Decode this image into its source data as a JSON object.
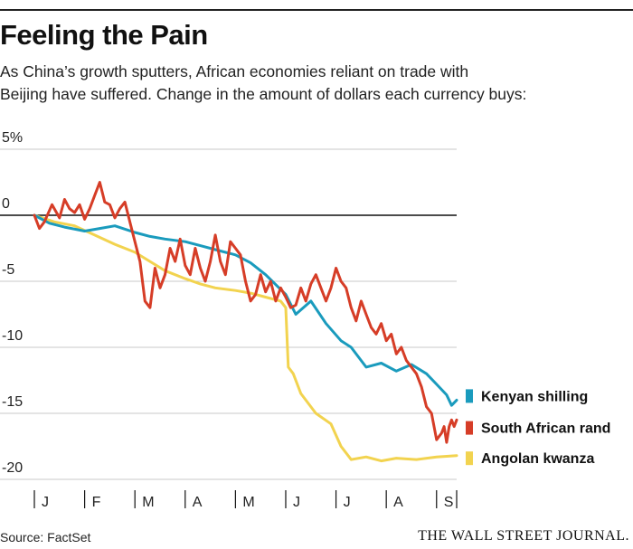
{
  "header": {
    "title": "Feeling the Pain",
    "subtitle_line1": "As China’s growth sputters, African economies reliant on trade with",
    "subtitle_line2": "Beijing have suffered. Change in the amount of dollars each currency buys:"
  },
  "footer": {
    "source": "Source: FactSet",
    "brand": "THE WALL STREET JOURNAL."
  },
  "chart_data": {
    "type": "line",
    "title": "Feeling the Pain",
    "xlabel": "",
    "ylabel": "",
    "ylim": [
      -20,
      5
    ],
    "x_range": [
      0,
      8.4
    ],
    "y_ticks": [
      {
        "value": 5,
        "label": "5%"
      },
      {
        "value": 0,
        "label": "0"
      },
      {
        "value": -5,
        "label": "-5"
      },
      {
        "value": -10,
        "label": "-10"
      },
      {
        "value": -15,
        "label": "-15"
      },
      {
        "value": -20,
        "label": "-20"
      }
    ],
    "x_ticks": [
      "J",
      "F",
      "M",
      "A",
      "M",
      "J",
      "J",
      "A",
      "S"
    ],
    "grid": true,
    "series": [
      {
        "name": "Kenyan shilling",
        "color": "#1a9bbd",
        "x": [
          0,
          0.3,
          0.6,
          1.0,
          1.3,
          1.6,
          2.0,
          2.3,
          2.6,
          3.0,
          3.3,
          3.6,
          4.0,
          4.3,
          4.6,
          5.0,
          5.2,
          5.5,
          5.8,
          6.1,
          6.3,
          6.6,
          6.9,
          7.2,
          7.5,
          7.8,
          8.0,
          8.2,
          8.3,
          8.4
        ],
        "values": [
          0,
          -0.6,
          -0.9,
          -1.2,
          -1.0,
          -0.8,
          -1.3,
          -1.6,
          -1.8,
          -2.0,
          -2.3,
          -2.6,
          -3.0,
          -3.6,
          -4.5,
          -6.0,
          -7.5,
          -6.5,
          -8.2,
          -9.5,
          -10.0,
          -11.5,
          -11.2,
          -11.8,
          -11.3,
          -12.0,
          -12.8,
          -13.6,
          -14.4,
          -14.0
        ]
      },
      {
        "name": "South African rand",
        "color": "#d63d27",
        "x": [
          0,
          0.1,
          0.2,
          0.35,
          0.5,
          0.6,
          0.7,
          0.8,
          0.9,
          1.0,
          1.1,
          1.2,
          1.3,
          1.4,
          1.5,
          1.6,
          1.7,
          1.8,
          1.9,
          2.0,
          2.1,
          2.2,
          2.3,
          2.4,
          2.5,
          2.6,
          2.7,
          2.8,
          2.9,
          3.0,
          3.1,
          3.2,
          3.3,
          3.4,
          3.5,
          3.6,
          3.7,
          3.8,
          3.9,
          4.0,
          4.1,
          4.2,
          4.3,
          4.4,
          4.5,
          4.6,
          4.7,
          4.8,
          4.9,
          5.0,
          5.1,
          5.2,
          5.3,
          5.4,
          5.5,
          5.6,
          5.7,
          5.8,
          5.9,
          6.0,
          6.1,
          6.2,
          6.3,
          6.4,
          6.5,
          6.6,
          6.7,
          6.8,
          6.9,
          7.0,
          7.1,
          7.2,
          7.3,
          7.4,
          7.5,
          7.6,
          7.7,
          7.8,
          7.9,
          8.0,
          8.1,
          8.15,
          8.2,
          8.25,
          8.3,
          8.35,
          8.4
        ],
        "values": [
          0,
          -1.0,
          -0.5,
          0.8,
          -0.2,
          1.2,
          0.5,
          0.2,
          0.8,
          -0.3,
          0.5,
          1.5,
          2.5,
          1.0,
          0.8,
          -0.2,
          0.5,
          1.0,
          -0.5,
          -2.0,
          -3.5,
          -6.5,
          -7.0,
          -4.0,
          -5.5,
          -4.5,
          -2.5,
          -3.5,
          -1.8,
          -3.8,
          -4.5,
          -2.5,
          -4.0,
          -5.0,
          -3.5,
          -1.5,
          -3.5,
          -4.5,
          -2.0,
          -2.5,
          -3.0,
          -5.0,
          -6.5,
          -6.0,
          -4.5,
          -5.8,
          -5.0,
          -6.5,
          -5.5,
          -6.2,
          -7.0,
          -6.8,
          -5.5,
          -6.5,
          -5.2,
          -4.5,
          -5.5,
          -6.5,
          -5.5,
          -4.0,
          -5.0,
          -5.5,
          -7.0,
          -8.0,
          -6.5,
          -7.5,
          -8.5,
          -9.0,
          -8.2,
          -9.5,
          -9.0,
          -10.5,
          -10.0,
          -11.0,
          -11.5,
          -12.0,
          -13.0,
          -14.5,
          -15.0,
          -17.0,
          -16.5,
          -16.0,
          -17.2,
          -16.0,
          -15.5,
          -16.0,
          -15.5
        ]
      },
      {
        "name": "Angolan kwanza",
        "color": "#f2d34f",
        "x": [
          0,
          0.4,
          0.8,
          1.2,
          1.6,
          2.0,
          2.3,
          2.6,
          3.0,
          3.3,
          3.6,
          4.0,
          4.3,
          4.6,
          4.9,
          5.0,
          5.05,
          5.15,
          5.3,
          5.6,
          5.9,
          6.1,
          6.3,
          6.6,
          6.9,
          7.2,
          7.6,
          8.0,
          8.4
        ],
        "values": [
          0,
          -0.5,
          -0.8,
          -1.5,
          -2.2,
          -2.8,
          -3.5,
          -4.2,
          -4.8,
          -5.2,
          -5.5,
          -5.7,
          -5.9,
          -6.2,
          -6.5,
          -7.0,
          -11.5,
          -12.0,
          -13.5,
          -15.0,
          -15.8,
          -17.5,
          -18.5,
          -18.3,
          -18.6,
          -18.4,
          -18.5,
          -18.3,
          -18.2
        ]
      }
    ]
  }
}
